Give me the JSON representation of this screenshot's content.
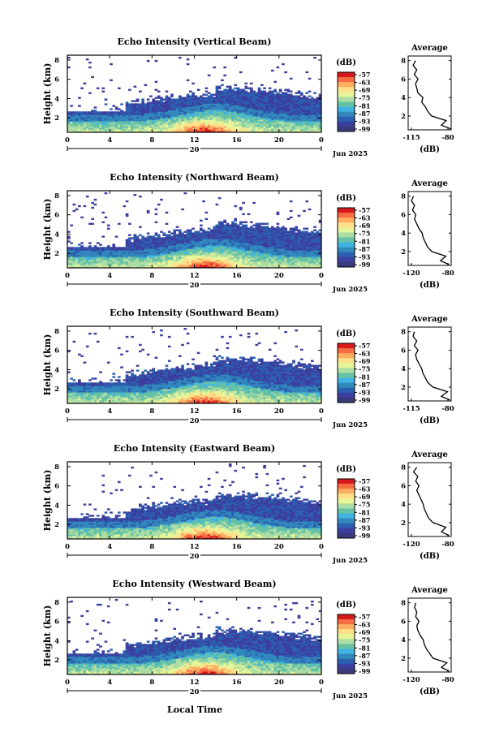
{
  "colorbar": {
    "unit": "(dB)",
    "ticks": [
      "-57",
      "-63",
      "-69",
      "-75",
      "-81",
      "-87",
      "-93",
      "-99"
    ],
    "colors": [
      "#d7191c",
      "#f46d43",
      "#fdae61",
      "#fee08b",
      "#e6f598",
      "#abdda4",
      "#66c2a5",
      "#3fb3e0",
      "#3288bd",
      "#2c5fb0",
      "#3c3f9e",
      "#3a3a7a"
    ]
  },
  "panels": [
    {
      "title": "Echo Intensity (Vertical Beam)",
      "ylabel": "Height (km)",
      "yticks": [
        "2",
        "4",
        "6",
        "8"
      ],
      "xticks": [
        "0",
        "4",
        "8",
        "12",
        "16",
        "20",
        "0"
      ],
      "day_label": "20",
      "month_label": "Jun 2025",
      "average": {
        "title": "Average",
        "xticks": [
          "-115",
          "-80"
        ],
        "xlabel": "(dB)",
        "yticks": [
          "2",
          "4",
          "6",
          "8"
        ]
      }
    },
    {
      "title": "Echo Intensity (Northward Beam)",
      "ylabel": "Height (km)",
      "yticks": [
        "2",
        "4",
        "6",
        "8"
      ],
      "xticks": [
        "0",
        "4",
        "8",
        "12",
        "16",
        "20",
        "0"
      ],
      "day_label": "20",
      "month_label": "Jun 2025",
      "average": {
        "title": "Average",
        "xticks": [
          "-120",
          "-80"
        ],
        "xlabel": "(dB)",
        "yticks": [
          "2",
          "4",
          "6",
          "8"
        ]
      }
    },
    {
      "title": "Echo Intensity (Southward Beam)",
      "ylabel": "Height (km)",
      "yticks": [
        "2",
        "4",
        "6",
        "8"
      ],
      "xticks": [
        "0",
        "4",
        "8",
        "12",
        "16",
        "20",
        "0"
      ],
      "day_label": "20",
      "month_label": "Jun 2025",
      "average": {
        "title": "Average",
        "xticks": [
          "-115",
          "-80"
        ],
        "xlabel": "(dB)",
        "yticks": [
          "2",
          "4",
          "6",
          "8"
        ]
      }
    },
    {
      "title": "Echo Intensity (Eastward Beam)",
      "ylabel": "Height (km)",
      "yticks": [
        "2",
        "4",
        "6",
        "8"
      ],
      "xticks": [
        "0",
        "4",
        "8",
        "12",
        "16",
        "20",
        "0"
      ],
      "day_label": "20",
      "month_label": "Jun 2025",
      "average": {
        "title": "Average",
        "xticks": [
          "-120",
          "-80"
        ],
        "xlabel": "(dB)",
        "yticks": [
          "2",
          "4",
          "6",
          "8"
        ]
      }
    },
    {
      "title": "Echo Intensity (Westward Beam)",
      "ylabel": "Height (km)",
      "yticks": [
        "2",
        "4",
        "6",
        "8"
      ],
      "xticks": [
        "0",
        "4",
        "8",
        "12",
        "16",
        "20",
        "0"
      ],
      "day_label": "20",
      "month_label": "Jun 2025",
      "average": {
        "title": "Average",
        "xticks": [
          "-120",
          "-80"
        ],
        "xlabel": "(dB)",
        "yticks": [
          "2",
          "4",
          "6",
          "8"
        ]
      }
    }
  ],
  "xlabel": "Local Time",
  "chart_data": [
    {
      "type": "heatmap",
      "title": "Echo Intensity (Vertical Beam)",
      "xlabel": "",
      "ylabel": "Height (km)",
      "xlim": [
        0,
        24
      ],
      "ylim": [
        0.5,
        8.5
      ],
      "colorbar_range_db": [
        -99,
        -57
      ],
      "average_profile": {
        "title": "Average",
        "xlabel": "(dB)",
        "xlim": [
          -115,
          -80
        ],
        "height_km": [
          0.6,
          1.0,
          1.5,
          2.0,
          2.5,
          3.0,
          3.5,
          4.0,
          4.5,
          5.0,
          5.5,
          6.0,
          6.5,
          7.0,
          7.5,
          8.0
        ],
        "db": [
          -80,
          -88,
          -84,
          -96,
          -99,
          -101,
          -104,
          -103,
          -107,
          -108,
          -109,
          -107,
          -110,
          -108,
          -111,
          -109
        ]
      }
    },
    {
      "type": "heatmap",
      "title": "Echo Intensity (Northward Beam)",
      "xlabel": "",
      "ylabel": "Height (km)",
      "xlim": [
        0,
        24
      ],
      "ylim": [
        0.5,
        8.5
      ],
      "colorbar_range_db": [
        -99,
        -57
      ],
      "average_profile": {
        "title": "Average",
        "xlabel": "(dB)",
        "xlim": [
          -120,
          -80
        ],
        "height_km": [
          0.6,
          1.0,
          1.5,
          2.0,
          2.5,
          3.0,
          3.5,
          4.0,
          4.5,
          5.0,
          5.5,
          6.0,
          6.5,
          7.0,
          7.5,
          8.0
        ],
        "db": [
          -82,
          -90,
          -85,
          -98,
          -102,
          -104,
          -106,
          -107,
          -110,
          -112,
          -114,
          -113,
          -116,
          -114,
          -117,
          -115
        ]
      }
    },
    {
      "type": "heatmap",
      "title": "Echo Intensity (Southward Beam)",
      "xlabel": "",
      "ylabel": "Height (km)",
      "xlim": [
        0,
        24
      ],
      "ylim": [
        0.5,
        8.5
      ],
      "colorbar_range_db": [
        -99,
        -57
      ],
      "average_profile": {
        "title": "Average",
        "xlabel": "(dB)",
        "xlim": [
          -115,
          -80
        ],
        "height_km": [
          0.6,
          1.0,
          1.5,
          2.0,
          2.5,
          3.0,
          3.5,
          4.0,
          4.5,
          5.0,
          5.5,
          6.0,
          6.5,
          7.0,
          7.5,
          8.0
        ],
        "db": [
          -81,
          -88,
          -83,
          -95,
          -99,
          -101,
          -103,
          -104,
          -106,
          -108,
          -109,
          -107,
          -110,
          -108,
          -111,
          -110
        ]
      }
    },
    {
      "type": "heatmap",
      "title": "Echo Intensity (Eastward Beam)",
      "xlabel": "",
      "ylabel": "Height (km)",
      "xlim": [
        0,
        24
      ],
      "ylim": [
        0.5,
        8.5
      ],
      "colorbar_range_db": [
        -99,
        -57
      ],
      "average_profile": {
        "title": "Average",
        "xlabel": "(dB)",
        "xlim": [
          -120,
          -80
        ],
        "height_km": [
          0.6,
          1.0,
          1.5,
          2.0,
          2.5,
          3.0,
          3.5,
          4.0,
          4.5,
          5.0,
          5.5,
          6.0,
          6.5,
          7.0,
          7.5,
          8.0
        ],
        "db": [
          -82,
          -89,
          -85,
          -97,
          -101,
          -103,
          -105,
          -106,
          -108,
          -110,
          -112,
          -110,
          -113,
          -111,
          -115,
          -112
        ]
      }
    },
    {
      "type": "heatmap",
      "title": "Echo Intensity (Westward Beam)",
      "xlabel": "Local Time",
      "ylabel": "Height (km)",
      "xlim": [
        0,
        24
      ],
      "ylim": [
        0.5,
        8.5
      ],
      "colorbar_range_db": [
        -99,
        -57
      ],
      "average_profile": {
        "title": "Average",
        "xlabel": "(dB)",
        "xlim": [
          -120,
          -80
        ],
        "height_km": [
          0.6,
          1.0,
          1.5,
          2.0,
          2.5,
          3.0,
          3.5,
          4.0,
          4.5,
          5.0,
          5.5,
          6.0,
          6.5,
          7.0,
          7.5,
          8.0
        ],
        "db": [
          -82,
          -89,
          -84,
          -97,
          -100,
          -103,
          -105,
          -106,
          -109,
          -111,
          -112,
          -110,
          -113,
          -112,
          -114,
          -113
        ]
      }
    }
  ]
}
